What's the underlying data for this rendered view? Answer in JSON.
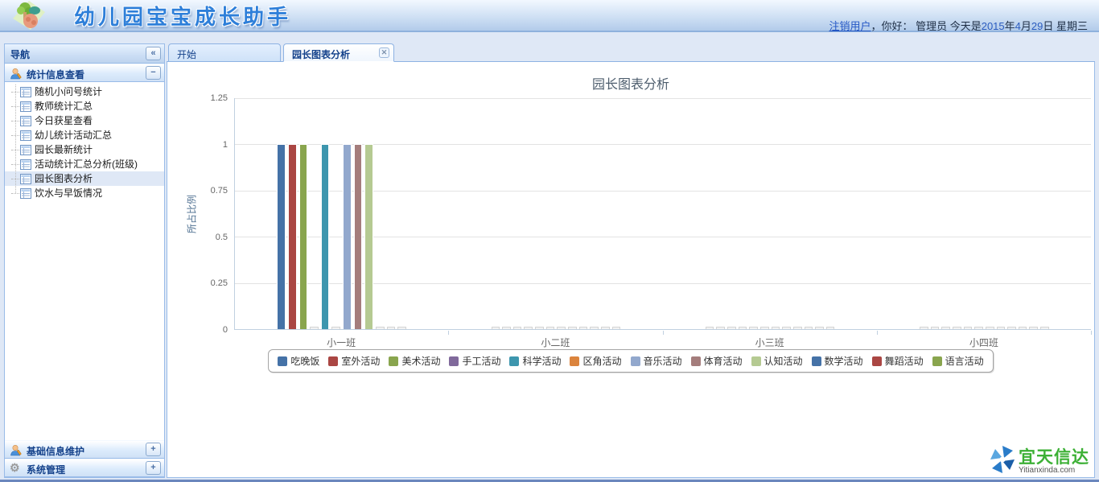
{
  "header": {
    "title": "幼儿园宝宝成长助手",
    "user": {
      "segments": [
        {
          "text": "注销用户",
          "type": "link"
        },
        {
          "text": "，你好： 管理员 今天是",
          "type": "text"
        },
        {
          "text": "2015",
          "type": "num"
        },
        {
          "text": "年",
          "type": "text"
        },
        {
          "text": "4",
          "type": "num"
        },
        {
          "text": "月",
          "type": "text"
        },
        {
          "text": "29",
          "type": "num"
        },
        {
          "text": "日 星期三",
          "type": "text"
        }
      ]
    }
  },
  "sidebar": {
    "title": "导航",
    "collapse_glyph": "«",
    "sections": [
      {
        "label": "统计信息查看",
        "toggle": "−"
      },
      {
        "label": "基础信息维护",
        "toggle": "+"
      },
      {
        "label": "系统管理",
        "toggle": "+"
      }
    ],
    "tree": {
      "items": [
        {
          "label": "随机小问号统计",
          "selected": false
        },
        {
          "label": "教师统计汇总",
          "selected": false
        },
        {
          "label": "今日获星查看",
          "selected": false
        },
        {
          "label": "幼儿统计活动汇总",
          "selected": false
        },
        {
          "label": "园长最新统计",
          "selected": false
        },
        {
          "label": "活动统计汇总分析(班级)",
          "selected": false
        },
        {
          "label": "园长图表分析",
          "selected": true
        },
        {
          "label": "饮水与早饭情况",
          "selected": false
        }
      ]
    }
  },
  "tabs": [
    {
      "label": "开始",
      "active": false
    },
    {
      "label": "园长图表分析",
      "active": true,
      "close_glyph": "✕"
    }
  ],
  "chart_data": {
    "type": "bar",
    "title": "园长图表分析",
    "ylabel": "所占比例",
    "xlabel": "",
    "categories": [
      "小一班",
      "小二班",
      "小三班",
      "小四班"
    ],
    "ylim": [
      0,
      1.25
    ],
    "yticks": [
      0,
      0.25,
      0.5,
      0.75,
      1,
      1.25
    ],
    "grid": true,
    "legend_position": "bottom",
    "series": [
      {
        "name": "吃晚饭",
        "color": "#4572A7",
        "values": [
          1,
          0,
          0,
          0
        ]
      },
      {
        "name": "室外活动",
        "color": "#AA4643",
        "values": [
          1,
          0,
          0,
          0
        ]
      },
      {
        "name": "美术活动",
        "color": "#89A54E",
        "values": [
          1,
          0,
          0,
          0
        ]
      },
      {
        "name": "手工活动",
        "color": "#80699B",
        "values": [
          0,
          0,
          0,
          0
        ]
      },
      {
        "name": "科学活动",
        "color": "#3D96AE",
        "values": [
          1,
          0,
          0,
          0
        ]
      },
      {
        "name": "区角活动",
        "color": "#DB843D",
        "values": [
          0,
          0,
          0,
          0
        ]
      },
      {
        "name": "音乐活动",
        "color": "#92A8CD",
        "values": [
          1,
          0,
          0,
          0
        ]
      },
      {
        "name": "体育活动",
        "color": "#A47D7C",
        "values": [
          1,
          0,
          0,
          0
        ]
      },
      {
        "name": "认知活动",
        "color": "#B5CA92",
        "values": [
          1,
          0,
          0,
          0
        ]
      },
      {
        "name": "数学活动",
        "color": "#4572A7",
        "values": [
          0,
          0,
          0,
          0
        ]
      },
      {
        "name": "舞蹈活动",
        "color": "#AA4643",
        "values": [
          0,
          0,
          0,
          0
        ]
      },
      {
        "name": "语言活动",
        "color": "#89A54E",
        "values": [
          0,
          0,
          0,
          0
        ]
      }
    ]
  },
  "footer_logo": {
    "cn": "宜天信达",
    "en": "Yitianxinda.com"
  }
}
